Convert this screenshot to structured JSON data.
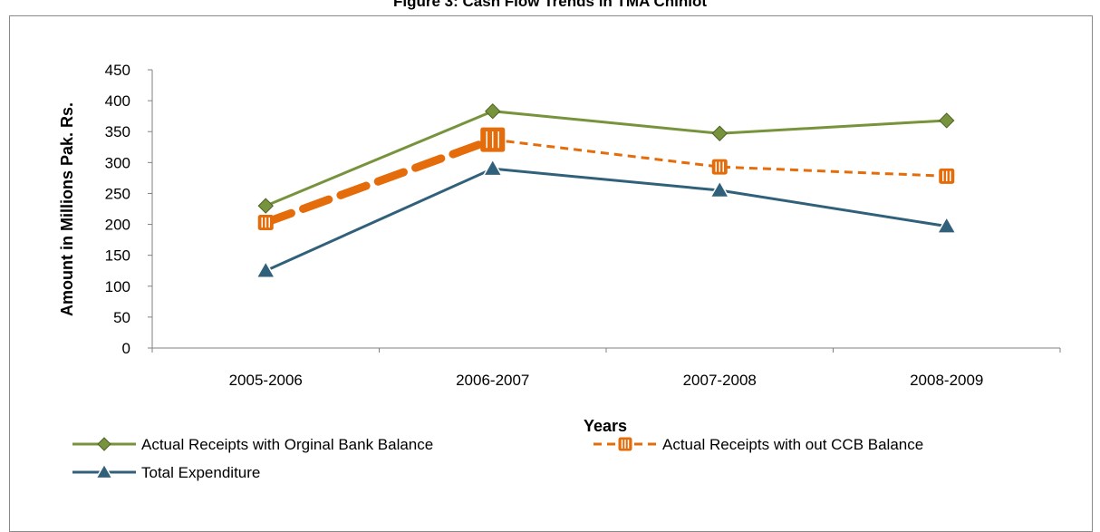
{
  "figure": {
    "title": "Figure 3: Cash Flow Trends in TMA Chiniot"
  },
  "chart_data": {
    "type": "line",
    "title": "",
    "xlabel": "Years",
    "ylabel": "Amount in Millions Pak. Rs.",
    "categories": [
      "2005-2006",
      "2006-2007",
      "2007-2008",
      "2008-2009"
    ],
    "ylim": [
      0,
      450
    ],
    "yticks": [
      0,
      50,
      100,
      150,
      200,
      250,
      300,
      350,
      400,
      450
    ],
    "grid": false,
    "legend_position": "bottom",
    "series": [
      {
        "name": "Actual Receipts with Orginal Bank Balance",
        "values": [
          230,
          383,
          347,
          368
        ],
        "color": "#77933c",
        "marker": "diamond",
        "dash": "solid"
      },
      {
        "name": "Actual Receipts with out CCB Balance",
        "values": [
          203,
          337,
          293,
          278
        ],
        "color": "#e46c0a",
        "marker": "square",
        "dash": "dashed"
      },
      {
        "name": "Total Expenditure",
        "values": [
          125,
          290,
          255,
          197
        ],
        "color": "#31617a",
        "marker": "triangle",
        "dash": "solid"
      }
    ]
  }
}
